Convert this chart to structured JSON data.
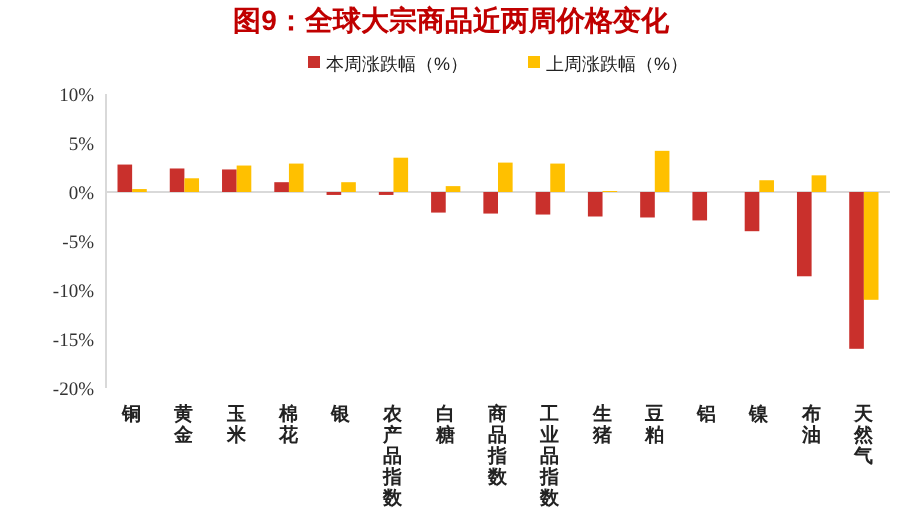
{
  "chart_data": {
    "type": "bar",
    "title": "图9：全球大宗商品近两周价格变化",
    "categories": [
      "铜",
      "黄金",
      "玉米",
      "棉花",
      "银",
      "农产品指数",
      "白糖",
      "商品指数",
      "工业品指数",
      "生猪",
      "豆粕",
      "铝",
      "镍",
      "布油",
      "天然气"
    ],
    "series": [
      {
        "name": "本周涨跌幅（%）",
        "color": "#c9302c",
        "values": [
          2.8,
          2.4,
          2.3,
          1.0,
          -0.3,
          -0.3,
          -2.1,
          -2.2,
          -2.3,
          -2.5,
          -2.6,
          -2.9,
          -4.0,
          -8.6,
          -16.0
        ]
      },
      {
        "name": "上周涨跌幅（%）",
        "color": "#ffc000",
        "values": [
          0.3,
          1.4,
          2.7,
          2.9,
          1.0,
          3.5,
          0.6,
          3.0,
          2.9,
          0.1,
          4.2,
          0,
          1.2,
          1.7,
          -11.0
        ]
      }
    ],
    "ylim": [
      -20,
      10
    ],
    "yticks": [
      {
        "value": -20,
        "label": "-20%"
      },
      {
        "value": -15,
        "label": "-15%"
      },
      {
        "value": -10,
        "label": "-10%"
      },
      {
        "value": -5,
        "label": "-5%"
      },
      {
        "value": 0,
        "label": "0%"
      },
      {
        "value": 5,
        "label": "5%"
      },
      {
        "value": 10,
        "label": "10%"
      }
    ],
    "legend": "top"
  }
}
